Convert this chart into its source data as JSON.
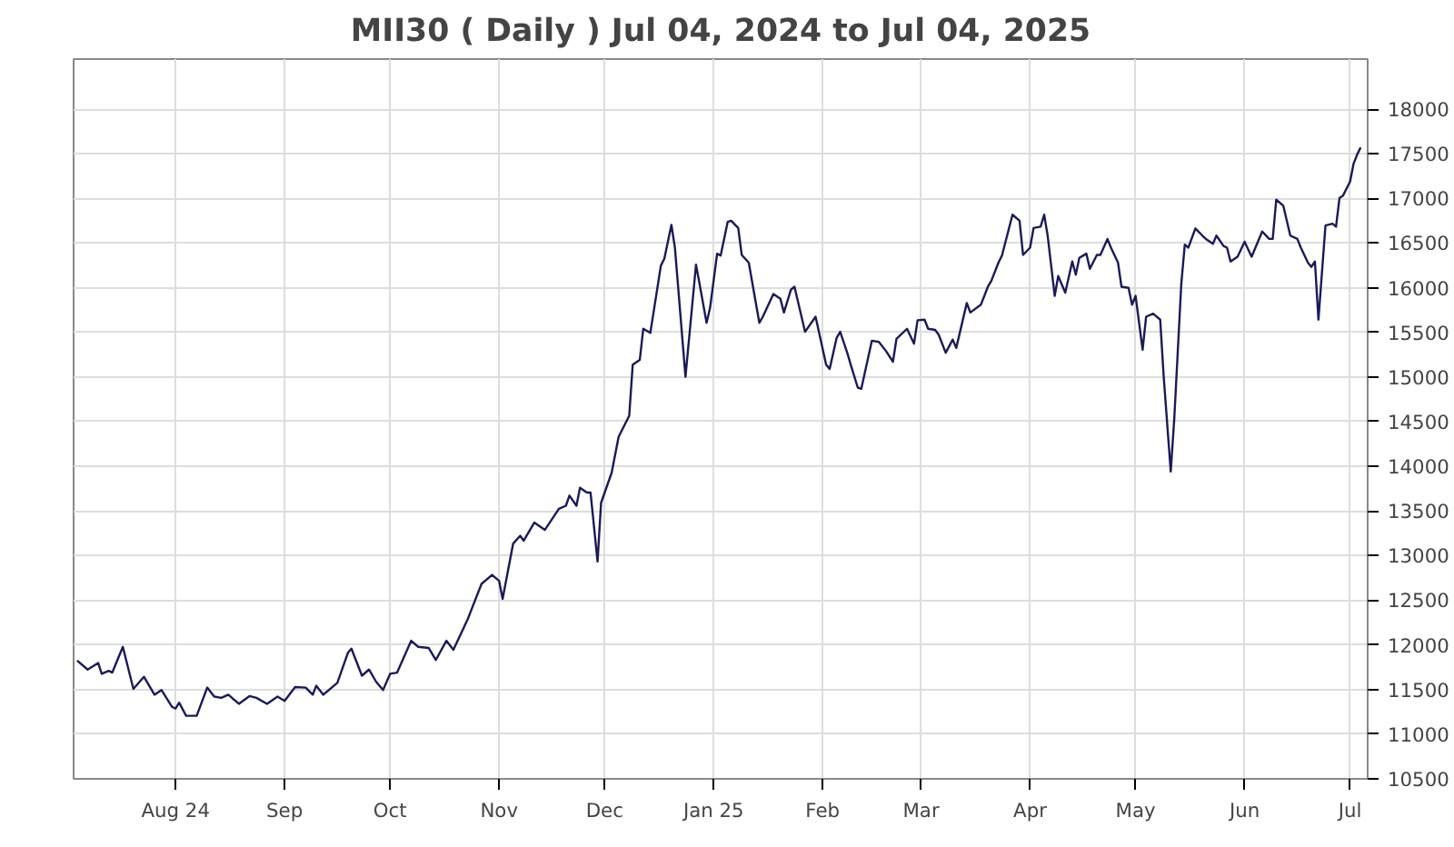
{
  "chart_data": {
    "type": "line",
    "title": "MII30 ( Daily ) Jul 04, 2024 to Jul 04, 2025",
    "x": [
      "2024-07-04",
      "2024-07-07",
      "2024-07-10",
      "2024-07-11",
      "2024-07-13",
      "2024-07-14",
      "2024-07-17",
      "2024-07-20",
      "2024-07-23",
      "2024-07-26",
      "2024-07-28",
      "2024-07-31",
      "2024-08-01",
      "2024-08-02",
      "2024-08-04",
      "2024-08-07",
      "2024-08-10",
      "2024-08-12",
      "2024-08-14",
      "2024-08-16",
      "2024-08-19",
      "2024-08-22",
      "2024-08-24",
      "2024-08-27",
      "2024-08-30",
      "2024-09-01",
      "2024-09-04",
      "2024-09-07",
      "2024-09-09",
      "2024-09-10",
      "2024-09-12",
      "2024-09-16",
      "2024-09-19",
      "2024-09-20",
      "2024-09-23",
      "2024-09-25",
      "2024-09-27",
      "2024-09-29",
      "2024-10-01",
      "2024-10-03",
      "2024-10-07",
      "2024-10-09",
      "2024-10-12",
      "2024-10-14",
      "2024-10-17",
      "2024-10-19",
      "2024-10-23",
      "2024-10-24",
      "2024-10-27",
      "2024-10-30",
      "2024-11-01",
      "2024-11-02",
      "2024-11-05",
      "2024-11-07",
      "2024-11-08",
      "2024-11-11",
      "2024-11-14",
      "2024-11-18",
      "2024-11-20",
      "2024-11-21",
      "2024-11-23",
      "2024-11-24",
      "2024-11-26",
      "2024-11-27",
      "2024-11-29",
      "2024-11-30",
      "2024-12-03",
      "2024-12-05",
      "2024-12-08",
      "2024-12-09",
      "2024-12-11",
      "2024-12-12",
      "2024-12-14",
      "2024-12-15",
      "2024-12-17",
      "2024-12-18",
      "2024-12-20",
      "2024-12-21",
      "2024-12-24",
      "2024-12-27",
      "2024-12-28",
      "2024-12-30",
      "2024-12-31",
      "2025-01-02",
      "2025-01-03",
      "2025-01-05",
      "2025-01-06",
      "2025-01-08",
      "2025-01-09",
      "2025-01-11",
      "2025-01-14",
      "2025-01-15",
      "2025-01-18",
      "2025-01-20",
      "2025-01-21",
      "2025-01-23",
      "2025-01-24",
      "2025-01-27",
      "2025-01-30",
      "2025-02-02",
      "2025-02-03",
      "2025-02-05",
      "2025-02-06",
      "2025-02-08",
      "2025-02-09",
      "2025-02-11",
      "2025-02-12",
      "2025-02-15",
      "2025-02-17",
      "2025-02-19",
      "2025-02-21",
      "2025-02-22",
      "2025-02-25",
      "2025-02-27",
      "2025-02-28",
      "2025-03-02",
      "2025-03-03",
      "2025-03-05",
      "2025-03-06",
      "2025-03-08",
      "2025-03-10",
      "2025-03-11",
      "2025-03-14",
      "2025-03-15",
      "2025-03-18",
      "2025-03-20",
      "2025-03-21",
      "2025-03-23",
      "2025-03-24",
      "2025-03-27",
      "2025-03-29",
      "2025-03-30",
      "2025-04-01",
      "2025-04-02",
      "2025-04-04",
      "2025-04-05",
      "2025-04-06",
      "2025-04-08",
      "2025-04-09",
      "2025-04-11",
      "2025-04-13",
      "2025-04-14",
      "2025-04-15",
      "2025-04-17",
      "2025-04-18",
      "2025-04-20",
      "2025-04-21",
      "2025-04-23",
      "2025-04-24",
      "2025-04-26",
      "2025-04-27",
      "2025-04-29",
      "2025-04-30",
      "2025-05-01",
      "2025-05-03",
      "2025-05-04",
      "2025-05-06",
      "2025-05-08",
      "2025-05-09",
      "2025-05-11",
      "2025-05-12",
      "2025-05-14",
      "2025-05-15",
      "2025-05-16",
      "2025-05-18",
      "2025-05-20",
      "2025-05-21",
      "2025-05-23",
      "2025-05-24",
      "2025-05-26",
      "2025-05-27",
      "2025-05-28",
      "2025-05-30",
      "2025-06-01",
      "2025-06-03",
      "2025-06-06",
      "2025-06-08",
      "2025-06-09",
      "2025-06-10",
      "2025-06-12",
      "2025-06-14",
      "2025-06-16",
      "2025-06-17",
      "2025-06-19",
      "2025-06-20",
      "2025-06-21",
      "2025-06-22",
      "2025-06-24",
      "2025-06-26",
      "2025-06-27",
      "2025-06-28",
      "2025-06-29",
      "2025-07-01",
      "2025-07-02",
      "2025-07-03",
      "2025-07-04"
    ],
    "series": [
      {
        "color": "#1a1a5a",
        "values": [
          11825,
          11724,
          11797,
          11676,
          11710,
          11690,
          11978,
          11508,
          11643,
          11442,
          11494,
          11306,
          11286,
          11353,
          11206,
          11206,
          11522,
          11421,
          11407,
          11442,
          11340,
          11427,
          11407,
          11340,
          11421,
          11373,
          11528,
          11522,
          11442,
          11542,
          11442,
          11575,
          11911,
          11958,
          11655,
          11724,
          11589,
          11494,
          11676,
          11690,
          12046,
          11978,
          11965,
          11831,
          12046,
          11945,
          12280,
          12381,
          12683,
          12784,
          12718,
          12516,
          13135,
          13222,
          13167,
          13369,
          13288,
          13524,
          13558,
          13672,
          13558,
          13760,
          13706,
          13706,
          12933,
          13591,
          13927,
          14331,
          14566,
          15137,
          15191,
          15540,
          15494,
          15742,
          16246,
          16327,
          16704,
          16448,
          15002,
          16259,
          16044,
          15607,
          15776,
          16381,
          16360,
          16736,
          16750,
          16669,
          16367,
          16280,
          15607,
          15675,
          15929,
          15875,
          15722,
          15978,
          16011,
          15506,
          15675,
          15137,
          15089,
          15440,
          15506,
          15271,
          15137,
          14881,
          14868,
          15406,
          15393,
          15292,
          15171,
          15426,
          15540,
          15373,
          15635,
          15642,
          15540,
          15527,
          15474,
          15271,
          15419,
          15325,
          15829,
          15722,
          15809,
          16011,
          16078,
          16280,
          16360,
          16817,
          16750,
          16367,
          16448,
          16669,
          16683,
          16817,
          16583,
          15909,
          16131,
          15944,
          16293,
          16145,
          16333,
          16381,
          16212,
          16367,
          16367,
          16546,
          16448,
          16280,
          16011,
          15998,
          15809,
          15909,
          15305,
          15675,
          15709,
          15642,
          15002,
          13941,
          14532,
          16044,
          16482,
          16448,
          16663,
          16583,
          16546,
          16492,
          16583,
          16468,
          16448,
          16293,
          16347,
          16515,
          16347,
          16629,
          16546,
          16546,
          16985,
          16918,
          16583,
          16546,
          16448,
          16280,
          16233,
          16293,
          15642,
          16696,
          16716,
          16683,
          17006,
          17032,
          17188,
          17389,
          17490,
          17571
        ]
      }
    ],
    "xlim": [
      "2024-07-03",
      "2025-07-06"
    ],
    "xticks": [
      {
        "value": "2024-08-01",
        "label": "Aug 24"
      },
      {
        "value": "2024-09-01",
        "label": "Sep"
      },
      {
        "value": "2024-10-01",
        "label": "Oct"
      },
      {
        "value": "2024-11-01",
        "label": "Nov"
      },
      {
        "value": "2024-12-01",
        "label": "Dec"
      },
      {
        "value": "2025-01-01",
        "label": "Jan 25"
      },
      {
        "value": "2025-02-01",
        "label": "Feb"
      },
      {
        "value": "2025-03-01",
        "label": "Mar"
      },
      {
        "value": "2025-04-01",
        "label": "Apr"
      },
      {
        "value": "2025-05-01",
        "label": "May"
      },
      {
        "value": "2025-06-01",
        "label": "Jun"
      },
      {
        "value": "2025-07-01",
        "label": "Jul"
      }
    ],
    "ylim": [
      10500,
      18560
    ],
    "yticks": [
      10500,
      11000,
      11500,
      12000,
      12500,
      13000,
      13500,
      14000,
      14500,
      15000,
      15500,
      16000,
      16500,
      17000,
      17500,
      18000
    ],
    "grid": true
  }
}
